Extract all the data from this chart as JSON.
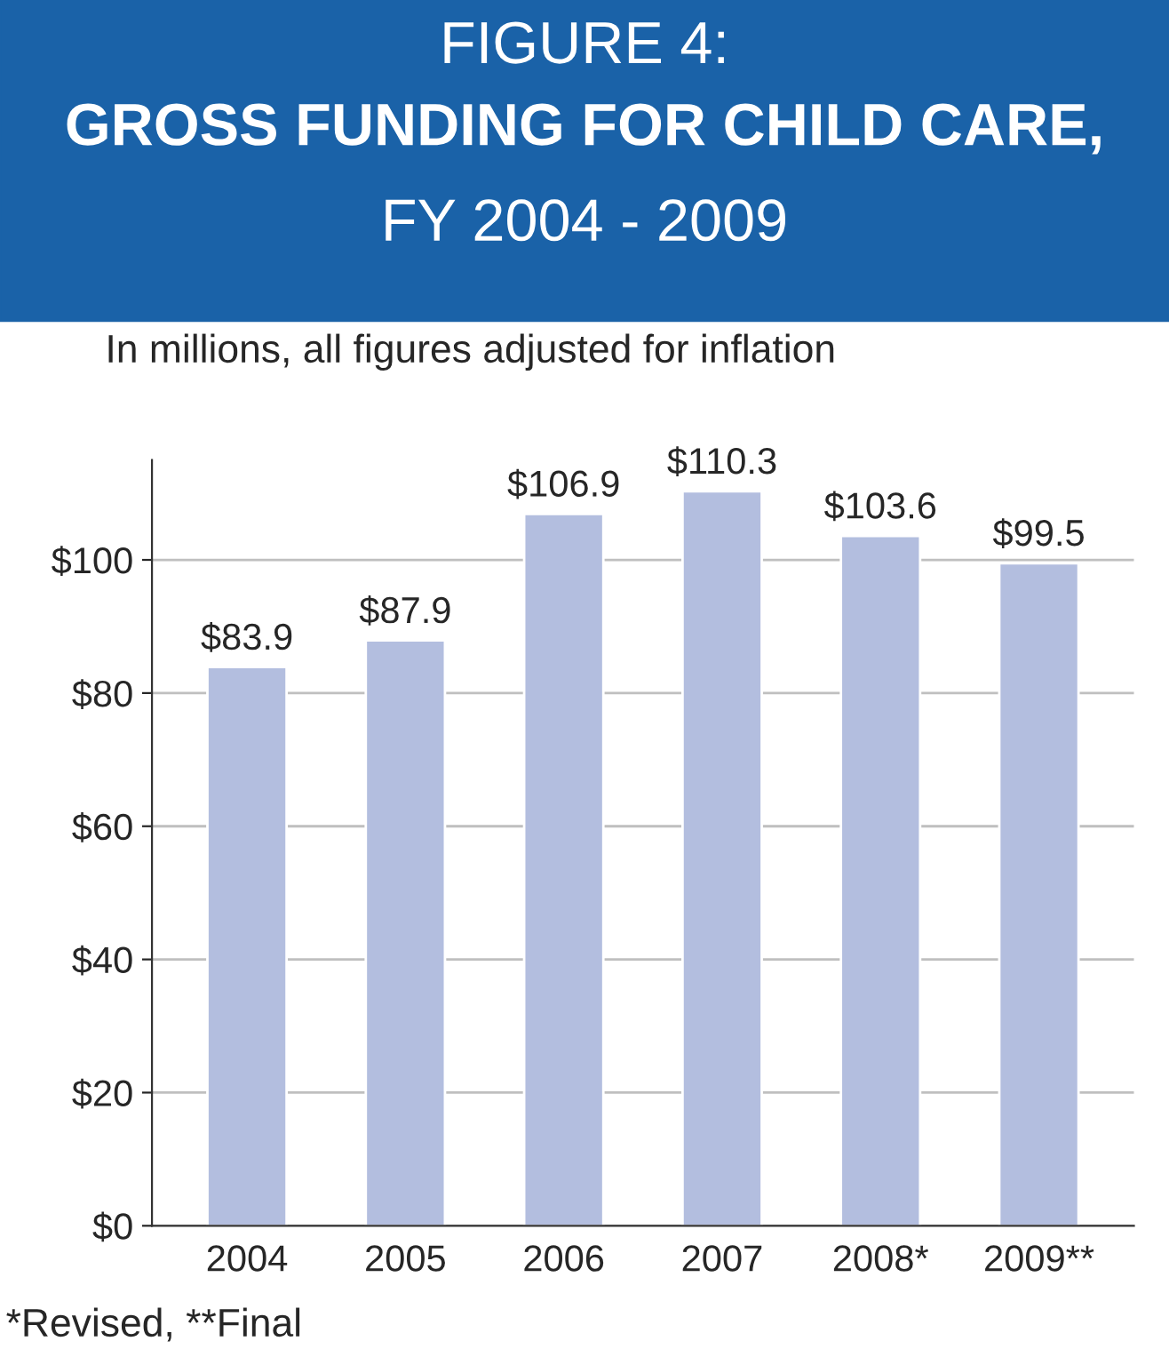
{
  "chart_data": {
    "type": "bar",
    "title": "FIGURE 4:\nGROSS FUNDING FOR CHILD CARE,\nFY 2004 - 2009",
    "subtitle": "In millions, all figures adjusted for inflation",
    "categories": [
      "2004",
      "2005",
      "2006",
      "2007",
      "2008*",
      "2009**"
    ],
    "values": [
      83.9,
      87.9,
      106.9,
      110.3,
      103.6,
      99.5
    ],
    "value_labels": [
      "$83.9",
      "$87.9",
      "$106.9",
      "$110.3",
      "$103.6",
      "$99.5"
    ],
    "color": "#b3bedf",
    "ylim": [
      0,
      115
    ],
    "yticks": [
      {
        "value": 0,
        "label": "$0"
      },
      {
        "value": 20,
        "label": "$20"
      },
      {
        "value": 40,
        "label": "$40"
      },
      {
        "value": 60,
        "label": "$60"
      },
      {
        "value": 80,
        "label": "$80"
      },
      {
        "value": 100,
        "label": "$100"
      }
    ],
    "grid": "y",
    "legend": false,
    "annotations": [
      "*Revised, **Final"
    ]
  }
}
